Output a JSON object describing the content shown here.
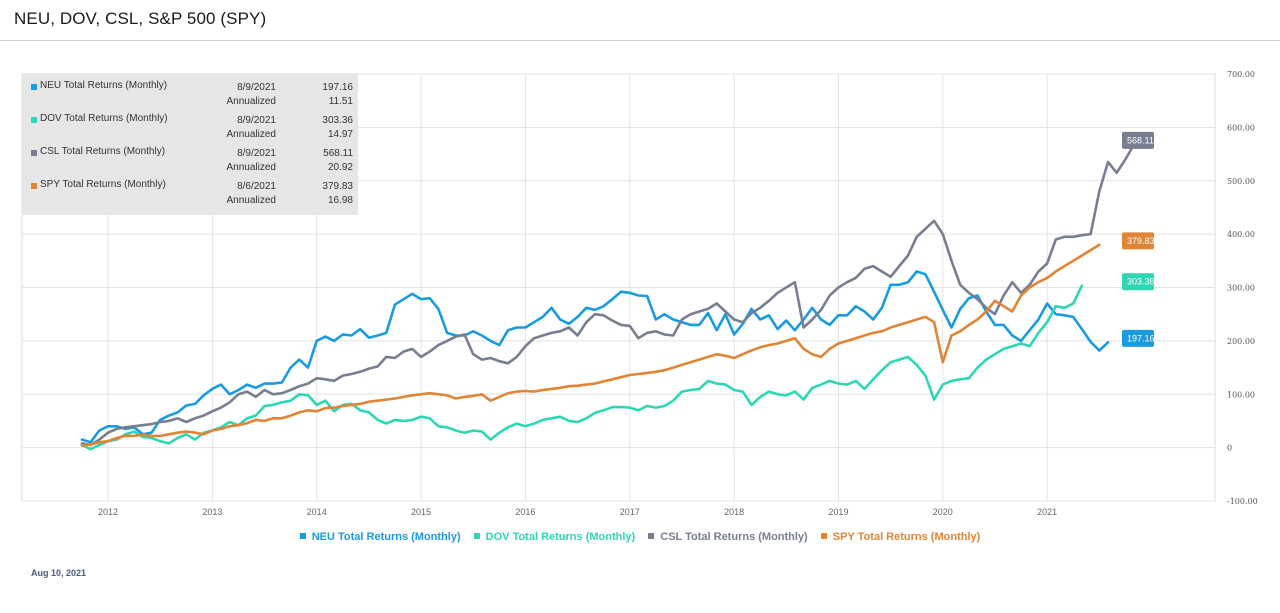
{
  "page": {
    "title": "NEU, DOV, CSL, S&P 500 (SPY)",
    "footer_date": "Aug 10, 2021"
  },
  "colors": {
    "NEU": "#1a9be0",
    "DOV": "#2ed6b4",
    "CSL": "#767e8f",
    "SPY": "#e08535"
  },
  "tooltip": [
    {
      "name": "NEU Total Returns (Monthly)",
      "date": "8/9/2021",
      "value": "197.16",
      "annualized_label": "Annualized",
      "annualized": "11.51",
      "color": "#1a9be0"
    },
    {
      "name": "DOV Total Returns (Monthly)",
      "date": "8/9/2021",
      "value": "303.36",
      "annualized_label": "Annualized",
      "annualized": "14.97",
      "color": "#2ed6b4"
    },
    {
      "name": "CSL Total Returns (Monthly)",
      "date": "8/9/2021",
      "value": "568.11",
      "annualized_label": "Annualized",
      "annualized": "20.92",
      "color": "#767e8f"
    },
    {
      "name": "SPY Total Returns (Monthly)",
      "date": "8/6/2021",
      "value": "379.83",
      "annualized_label": "Annualized",
      "annualized": "16.98",
      "color": "#e08535"
    }
  ],
  "chart_data": {
    "type": "line",
    "x_start": 2011.75,
    "x_step": 0.08333,
    "x_ticks": [
      "2012",
      "2013",
      "2014",
      "2015",
      "2016",
      "2017",
      "2018",
      "2019",
      "2020",
      "2021"
    ],
    "y_ticks": [
      "700.00",
      "600.00",
      "500.00",
      "400.00",
      "300.00",
      "200.00",
      "100.00",
      "0",
      "-100.00"
    ],
    "ylim": [
      -100,
      700
    ],
    "grid": true,
    "legend_position": "bottom",
    "series": [
      {
        "name": "NEU Total Returns (Monthly)",
        "color": "#1a9be0",
        "end_label": "197.16",
        "values": [
          15,
          10,
          32,
          40,
          40,
          35,
          38,
          25,
          28,
          52,
          60,
          66,
          79,
          82,
          98,
          110,
          118,
          100,
          108,
          118,
          112,
          120,
          120,
          122,
          150,
          165,
          150,
          200,
          208,
          200,
          212,
          210,
          222,
          206,
          210,
          215,
          268,
          278,
          288,
          278,
          280,
          260,
          215,
          210,
          210,
          218,
          210,
          200,
          192,
          220,
          225,
          225,
          235,
          245,
          262,
          240,
          232,
          245,
          262,
          258,
          265,
          278,
          292,
          290,
          285,
          284,
          240,
          250,
          240,
          235,
          230,
          230,
          252,
          220,
          250,
          212,
          232,
          260,
          240,
          248,
          222,
          238,
          220,
          240,
          262,
          240,
          230,
          248,
          248,
          265,
          255,
          240,
          262,
          305,
          305,
          310,
          330,
          325,
          292,
          258,
          225,
          260,
          280,
          285,
          255,
          230,
          230,
          210,
          200,
          220,
          240,
          270,
          250,
          248,
          245,
          222,
          198,
          182,
          197.16
        ]
      },
      {
        "name": "DOV Total Returns (Monthly)",
        "color": "#2ed6b4",
        "end_label": "303.36",
        "values": [
          5,
          -3,
          5,
          12,
          15,
          25,
          30,
          20,
          18,
          12,
          8,
          18,
          25,
          15,
          28,
          32,
          38,
          48,
          42,
          55,
          60,
          78,
          80,
          85,
          88,
          100,
          98,
          80,
          88,
          68,
          80,
          82,
          70,
          66,
          52,
          45,
          52,
          50,
          52,
          58,
          55,
          40,
          38,
          32,
          28,
          32,
          30,
          15,
          28,
          38,
          45,
          40,
          45,
          52,
          55,
          58,
          50,
          48,
          55,
          65,
          70,
          76,
          76,
          75,
          70,
          78,
          75,
          78,
          88,
          105,
          108,
          110,
          125,
          120,
          118,
          108,
          105,
          80,
          95,
          105,
          100,
          98,
          105,
          90,
          112,
          118,
          125,
          120,
          118,
          125,
          110,
          128,
          145,
          160,
          165,
          170,
          155,
          135,
          90,
          118,
          125,
          128,
          130,
          150,
          165,
          175,
          185,
          190,
          195,
          190,
          215,
          235,
          265,
          262,
          270,
          303.36
        ]
      },
      {
        "name": "CSL Total Returns (Monthly)",
        "color": "#767e8f",
        "end_label": "568.11",
        "values": [
          8,
          5,
          15,
          28,
          35,
          38,
          40,
          42,
          44,
          48,
          50,
          55,
          48,
          55,
          60,
          68,
          75,
          85,
          100,
          105,
          95,
          108,
          100,
          102,
          108,
          115,
          120,
          130,
          128,
          125,
          135,
          138,
          142,
          148,
          152,
          170,
          168,
          180,
          185,
          170,
          180,
          192,
          200,
          208,
          212,
          175,
          165,
          168,
          162,
          158,
          170,
          190,
          205,
          210,
          215,
          218,
          225,
          210,
          235,
          250,
          248,
          238,
          230,
          228,
          205,
          215,
          218,
          212,
          210,
          240,
          250,
          255,
          260,
          270,
          255,
          240,
          235,
          252,
          262,
          275,
          290,
          300,
          310,
          225,
          240,
          258,
          285,
          300,
          310,
          318,
          335,
          340,
          330,
          320,
          340,
          360,
          395,
          410,
          425,
          400,
          350,
          305,
          290,
          278,
          262,
          250,
          285,
          310,
          290,
          305,
          330,
          345,
          390,
          395,
          395,
          398,
          400,
          480,
          535,
          515,
          540,
          568.11
        ]
      },
      {
        "name": "SPY Total Returns (Monthly)",
        "color": "#e08535",
        "end_label": "379.83",
        "values": [
          4,
          6,
          10,
          12,
          18,
          22,
          22,
          24,
          22,
          22,
          25,
          28,
          30,
          28,
          25,
          32,
          35,
          40,
          42,
          46,
          52,
          50,
          55,
          55,
          60,
          66,
          70,
          68,
          74,
          75,
          78,
          80,
          82,
          86,
          88,
          90,
          92,
          95,
          98,
          100,
          102,
          100,
          98,
          92,
          95,
          97,
          100,
          88,
          95,
          102,
          105,
          106,
          105,
          108,
          110,
          112,
          115,
          116,
          118,
          120,
          124,
          128,
          132,
          136,
          138,
          140,
          142,
          145,
          150,
          155,
          160,
          165,
          170,
          175,
          172,
          168,
          175,
          182,
          188,
          192,
          195,
          200,
          205,
          185,
          175,
          170,
          185,
          195,
          200,
          205,
          210,
          215,
          218,
          225,
          230,
          235,
          240,
          245,
          235,
          160,
          210,
          218,
          230,
          240,
          255,
          275,
          265,
          255,
          285,
          300,
          310,
          318,
          330,
          340,
          350,
          360,
          370,
          379.83
        ]
      }
    ]
  },
  "legend": [
    {
      "label": "NEU Total Returns (Monthly)",
      "color": "#1a9be0"
    },
    {
      "label": "DOV Total Returns (Monthly)",
      "color": "#2ed6b4"
    },
    {
      "label": "CSL Total Returns (Monthly)",
      "color": "#767e8f"
    },
    {
      "label": "SPY Total Returns (Monthly)",
      "color": "#e08535"
    }
  ]
}
